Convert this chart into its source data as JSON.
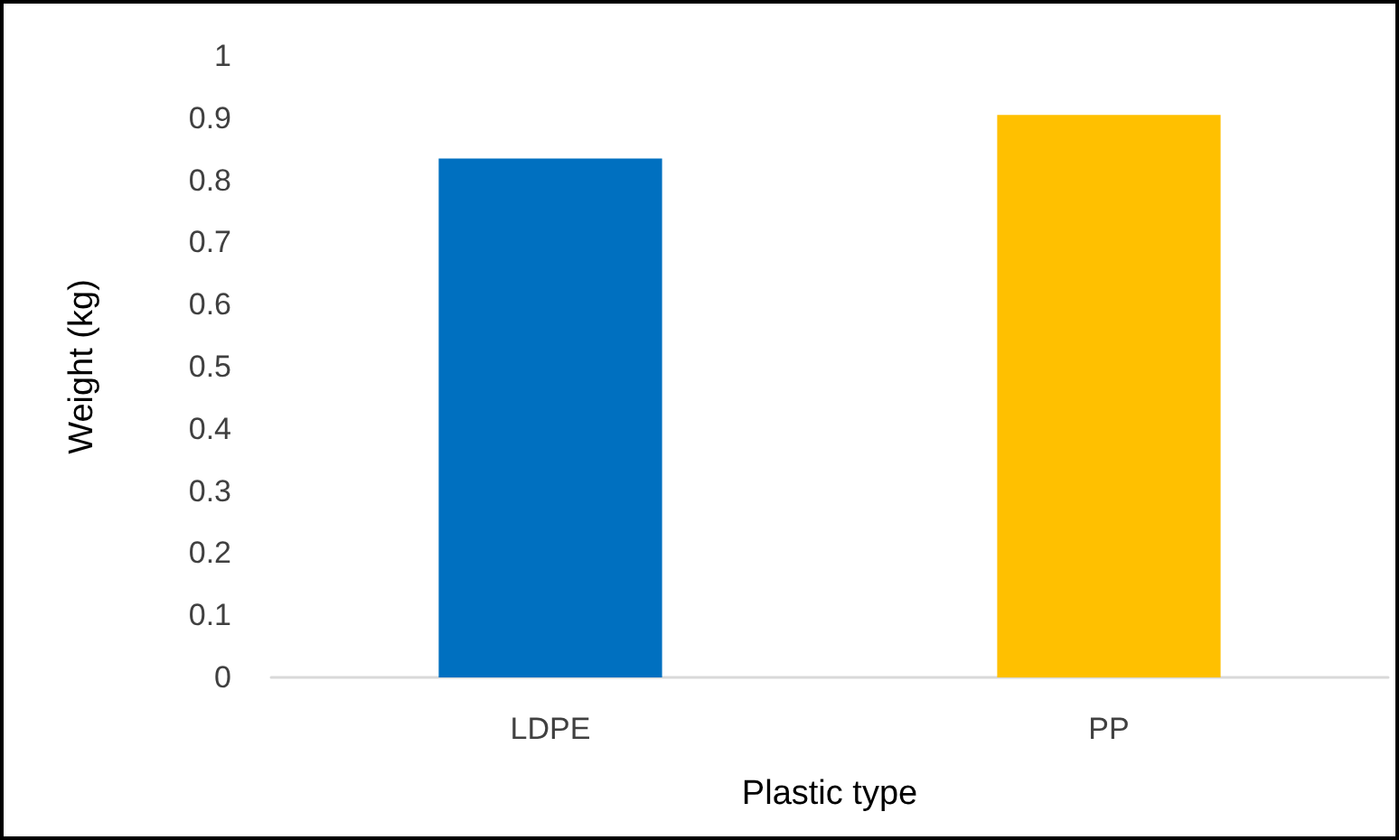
{
  "chart_data": {
    "type": "bar",
    "xlabel": "Plastic type",
    "ylabel": "Weight (kg)",
    "categories": [
      "LDPE",
      "PP"
    ],
    "values": [
      0.835,
      0.905
    ],
    "colors": [
      "#0070c0",
      "#ffc000"
    ],
    "ylim": [
      0,
      1
    ],
    "yticks": [
      0,
      0.1,
      0.2,
      0.3,
      0.4,
      0.5,
      0.6,
      0.7,
      0.8,
      0.9,
      1
    ],
    "grid": false
  }
}
